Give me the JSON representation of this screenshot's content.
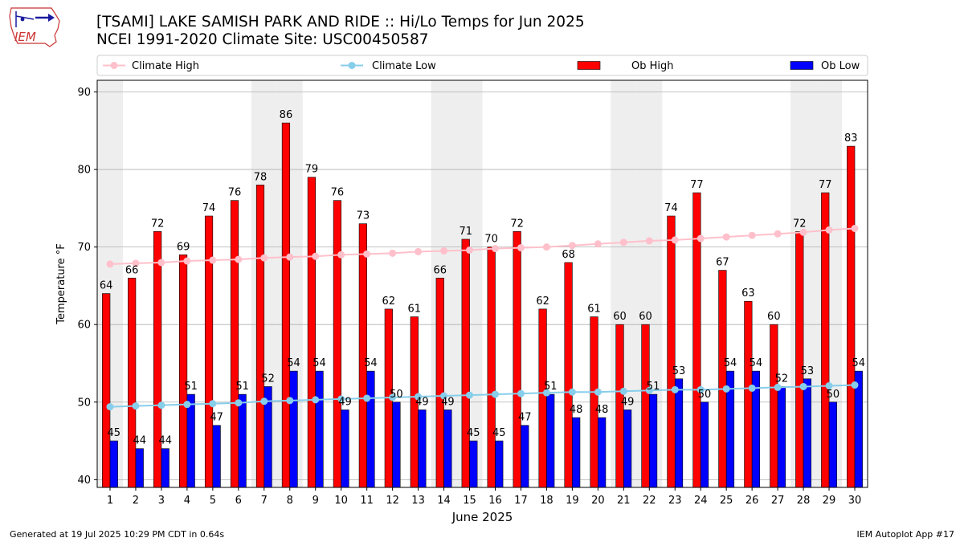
{
  "header": {
    "title_line1": "[TSAMI] LAKE SAMISH PARK AND RIDE :: Hi/Lo Temps for Jun 2025",
    "title_line2": "NCEI 1991-2020 Climate Site: USC00450587",
    "logo_text": "IEM"
  },
  "footer": {
    "generated": "Generated at 19 Jul 2025 10:29 PM CDT in 0.64s",
    "app": "IEM Autoplot App #17"
  },
  "colors": {
    "ob_high": "#ff0000",
    "ob_low": "#0000ff",
    "climate_high": "#ffc0cb",
    "climate_low": "#87ceeb",
    "weekend_band": "#eeeeee",
    "grid": "#b0b0b0"
  },
  "chart_data": {
    "type": "bar",
    "xlabel": "June 2025",
    "ylabel": "Temperature °F",
    "ylim": [
      39,
      91.5
    ],
    "yticks": [
      40,
      50,
      60,
      70,
      80,
      90
    ],
    "grid": "horizontal",
    "legend_position": "top",
    "categories": [
      "1",
      "2",
      "3",
      "4",
      "5",
      "6",
      "7",
      "8",
      "9",
      "10",
      "11",
      "12",
      "13",
      "14",
      "15",
      "16",
      "17",
      "18",
      "19",
      "20",
      "21",
      "22",
      "23",
      "24",
      "25",
      "26",
      "27",
      "28",
      "29",
      "30"
    ],
    "series": [
      {
        "name": "Ob High",
        "kind": "bar",
        "color": "#ff0000",
        "values": [
          64,
          66,
          72,
          69,
          74,
          76,
          78,
          86,
          79,
          76,
          73,
          62,
          61,
          66,
          71,
          70,
          72,
          62,
          68,
          61,
          60,
          60,
          74,
          77,
          67,
          63,
          60,
          72,
          77,
          83
        ]
      },
      {
        "name": "Ob Low",
        "kind": "bar",
        "color": "#0000ff",
        "values": [
          45,
          44,
          44,
          51,
          47,
          51,
          52,
          54,
          54,
          49,
          54,
          50,
          49,
          49,
          45,
          45,
          47,
          51,
          48,
          48,
          49,
          51,
          53,
          50,
          54,
          54,
          52,
          53,
          50,
          54
        ]
      },
      {
        "name": "Climate High",
        "kind": "line",
        "color": "#ffc0cb",
        "values": [
          67.8,
          67.9,
          68.0,
          68.2,
          68.3,
          68.4,
          68.6,
          68.7,
          68.8,
          69.0,
          69.1,
          69.2,
          69.4,
          69.5,
          69.6,
          69.8,
          69.9,
          70.0,
          70.2,
          70.4,
          70.6,
          70.8,
          70.9,
          71.1,
          71.3,
          71.5,
          71.7,
          71.9,
          72.2,
          72.4
        ]
      },
      {
        "name": "Climate Low",
        "kind": "line",
        "color": "#87ceeb",
        "values": [
          49.4,
          49.5,
          49.6,
          49.7,
          49.8,
          49.9,
          50.1,
          50.2,
          50.3,
          50.4,
          50.5,
          50.6,
          50.7,
          50.8,
          50.9,
          51.0,
          51.1,
          51.2,
          51.3,
          51.3,
          51.4,
          51.5,
          51.6,
          51.6,
          51.7,
          51.8,
          51.9,
          52.0,
          52.1,
          52.2
        ]
      }
    ],
    "weekend_days": [
      "1",
      "7",
      "8",
      "14",
      "15",
      "21",
      "22",
      "28",
      "29"
    ]
  }
}
